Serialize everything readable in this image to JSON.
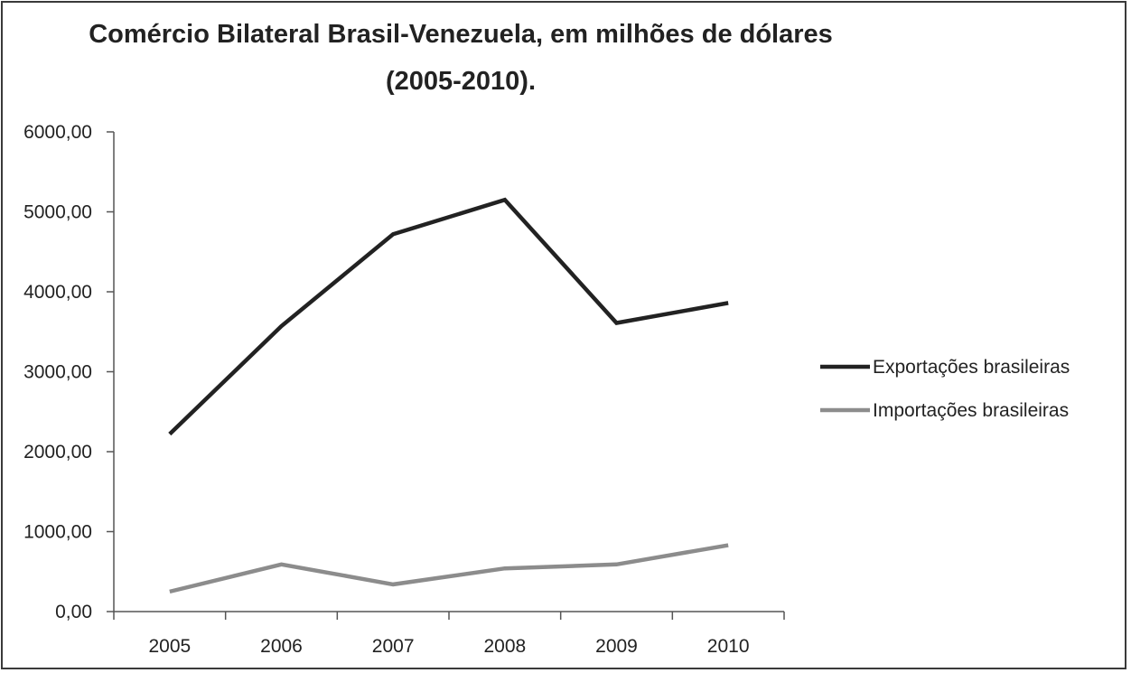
{
  "chart_data": {
    "type": "line",
    "title_line1": "Comércio Bilateral Brasil-Venezuela, em milhões de dólares",
    "title_line2": "(2005-2010).",
    "xlabel": "",
    "ylabel": "",
    "categories": [
      "2005",
      "2006",
      "2007",
      "2008",
      "2009",
      "2010"
    ],
    "ylim": [
      0,
      6000
    ],
    "yticks": [
      0,
      1000,
      2000,
      3000,
      4000,
      5000,
      6000
    ],
    "ytick_labels": [
      "0,00",
      "1000,00",
      "2000,00",
      "3000,00",
      "4000,00",
      "5000,00",
      "6000,00"
    ],
    "grid": false,
    "legend_position": "right",
    "series": [
      {
        "name": "Exportações brasileiras",
        "color": "#222222",
        "values": [
          2220,
          3570,
          4720,
          5150,
          3610,
          3860
        ]
      },
      {
        "name": "Importações brasileiras",
        "color": "#8c8c8c",
        "values": [
          250,
          590,
          340,
          540,
          590,
          830
        ]
      }
    ]
  }
}
